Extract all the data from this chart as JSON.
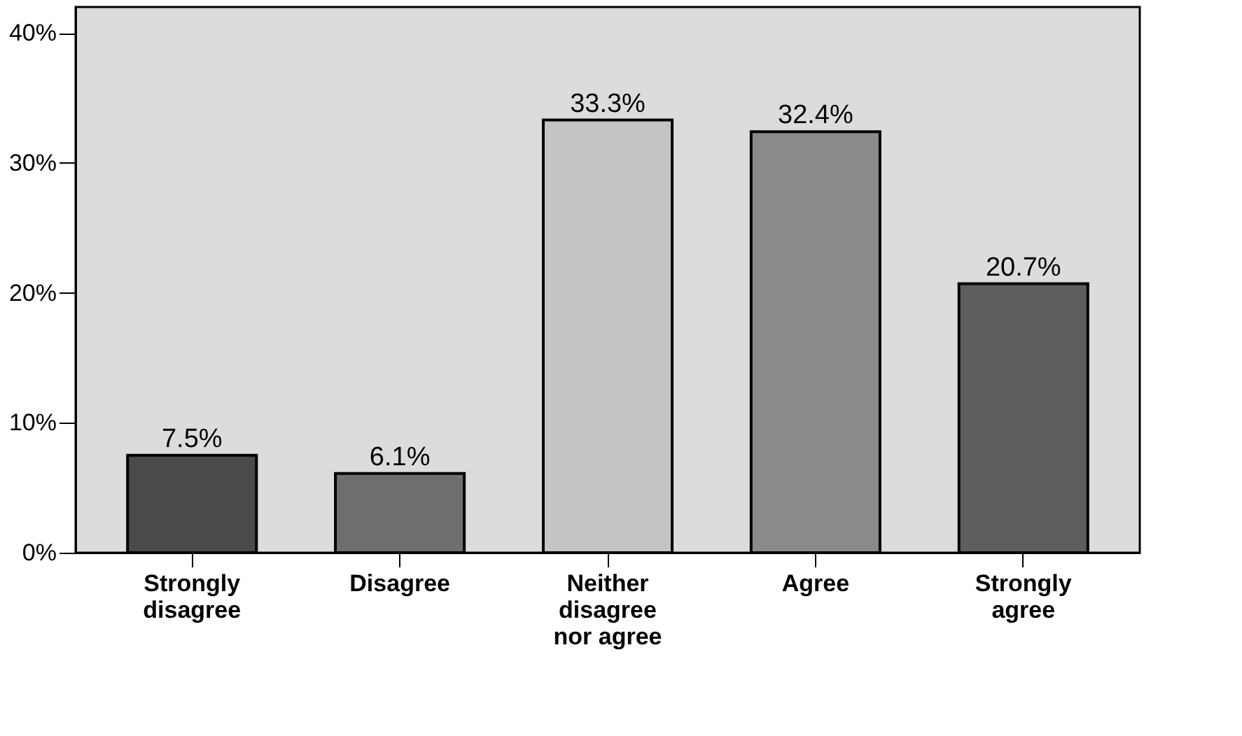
{
  "chart_data": {
    "type": "bar",
    "categories": [
      "Strongly disagree",
      "Disagree",
      "Neither disagree nor agree",
      "Agree",
      "Strongly agree"
    ],
    "values": [
      7.5,
      6.1,
      33.3,
      32.4,
      20.7
    ],
    "colors": [
      "#4a4a4a",
      "#6e6e6e",
      "#c4c4c4",
      "#8a8a8a",
      "#5e5e5e"
    ],
    "value_labels": [
      "7.5%",
      "6.1%",
      "33.3%",
      "32.4%",
      "20.7%"
    ],
    "ylim": [
      0,
      42
    ],
    "yticks": [
      {
        "value": 0,
        "label": "0%"
      },
      {
        "value": 10,
        "label": "10%"
      },
      {
        "value": 20,
        "label": "20%"
      },
      {
        "value": 30,
        "label": "30%"
      },
      {
        "value": 40,
        "label": "40%"
      }
    ],
    "grid": false
  }
}
